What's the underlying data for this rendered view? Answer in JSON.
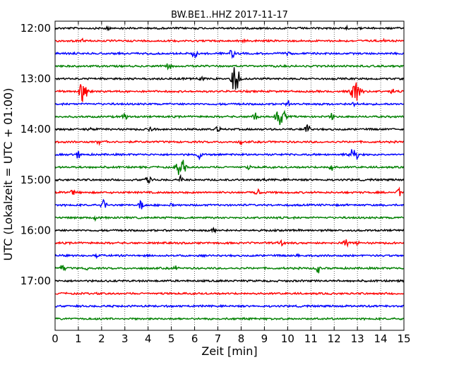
{
  "chart_data": {
    "type": "line",
    "title": "BW.BE1..HHZ 2017-11-17",
    "xlabel": "Zeit  [min]",
    "ylabel": "UTC (Lokalzeit = UTC + 01:00)",
    "xlim": [
      0,
      15
    ],
    "x_ticks": [
      "0",
      "1",
      "2",
      "3",
      "4",
      "5",
      "6",
      "7",
      "8",
      "9",
      "10",
      "11",
      "12",
      "13",
      "14",
      "15"
    ],
    "y_tick_labels": [
      "12:00",
      "13:00",
      "14:00",
      "15:00",
      "16:00",
      "17:00"
    ],
    "y_tick_trace_index": [
      0,
      4,
      8,
      12,
      16,
      20
    ],
    "vertical_grid": "dotted, at every minute",
    "trace_colors": [
      "#000000",
      "#ff0000",
      "#0000ff",
      "#008000"
    ],
    "traces": [
      {
        "start": "12:00",
        "events": [
          [
            2.25,
            6
          ],
          [
            12.5,
            4
          ]
        ]
      },
      {
        "start": "12:15",
        "events": [
          [
            1.2,
            5
          ],
          [
            8.1,
            4
          ],
          [
            14.1,
            4
          ]
        ]
      },
      {
        "start": "12:30",
        "events": [
          [
            6.0,
            9
          ],
          [
            7.6,
            9
          ],
          [
            10.0,
            5
          ]
        ]
      },
      {
        "start": "12:45",
        "events": [
          [
            4.9,
            9
          ]
        ]
      },
      {
        "start": "13:00",
        "events": [
          [
            7.7,
            28
          ],
          [
            6.3,
            6
          ]
        ]
      },
      {
        "start": "13:15",
        "events": [
          [
            1.25,
            20
          ],
          [
            12.95,
            26
          ],
          [
            14.5,
            6
          ]
        ]
      },
      {
        "start": "13:30",
        "events": [
          [
            10.0,
            10
          ],
          [
            12.9,
            8
          ]
        ]
      },
      {
        "start": "13:45",
        "events": [
          [
            3.0,
            10
          ],
          [
            8.6,
            10
          ],
          [
            9.7,
            16
          ],
          [
            11.9,
            8
          ]
        ]
      },
      {
        "start": "14:00",
        "events": [
          [
            1.5,
            6
          ],
          [
            4.1,
            5
          ],
          [
            7.0,
            6
          ],
          [
            10.85,
            11
          ]
        ]
      },
      {
        "start": "14:15",
        "events": [
          [
            1.9,
            6
          ],
          [
            2.2,
            4
          ],
          [
            8.0,
            4
          ]
        ]
      },
      {
        "start": "14:30",
        "events": [
          [
            1.0,
            10
          ],
          [
            6.2,
            9
          ],
          [
            12.8,
            14
          ]
        ]
      },
      {
        "start": "14:45",
        "events": [
          [
            5.4,
            16
          ],
          [
            8.3,
            5
          ],
          [
            11.9,
            8
          ]
        ]
      },
      {
        "start": "15:00",
        "events": [
          [
            4.0,
            10
          ],
          [
            5.4,
            7
          ],
          [
            9.0,
            4
          ]
        ]
      },
      {
        "start": "15:15",
        "events": [
          [
            0.75,
            6
          ],
          [
            8.7,
            12
          ],
          [
            14.8,
            12
          ]
        ]
      },
      {
        "start": "15:30",
        "events": [
          [
            2.1,
            12
          ],
          [
            3.7,
            10
          ],
          [
            5.0,
            4
          ]
        ]
      },
      {
        "start": "15:45",
        "events": [
          [
            1.7,
            5
          ]
        ]
      },
      {
        "start": "16:00",
        "events": [
          [
            6.8,
            6
          ]
        ]
      },
      {
        "start": "16:15",
        "events": [
          [
            9.7,
            7
          ],
          [
            12.5,
            7
          ],
          [
            13.0,
            6
          ]
        ]
      },
      {
        "start": "16:30",
        "events": [
          [
            1.8,
            4
          ],
          [
            10.4,
            4
          ]
        ]
      },
      {
        "start": "16:45",
        "events": [
          [
            0.35,
            12
          ],
          [
            1.4,
            4
          ],
          [
            5.2,
            6
          ],
          [
            11.3,
            10
          ]
        ]
      },
      {
        "start": "17:00",
        "events": [
          [
            2.3,
            3
          ],
          [
            12.4,
            3
          ]
        ]
      },
      {
        "start": "17:15",
        "events": []
      },
      {
        "start": "17:30",
        "events": []
      },
      {
        "start": "17:45",
        "events": []
      }
    ]
  }
}
